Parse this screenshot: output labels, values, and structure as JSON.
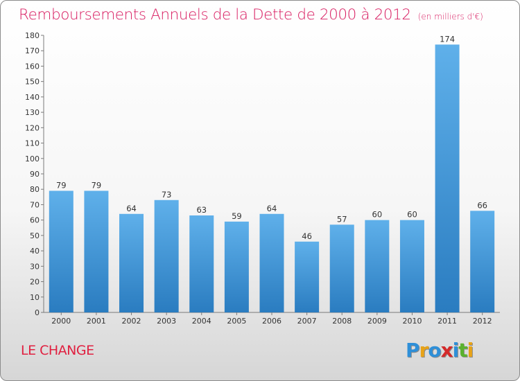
{
  "header": {
    "title": "Remboursements Annuels de la Dette de 2000 à 2012",
    "unit": "(en milliers d'€)"
  },
  "footer": {
    "commune": "LE CHANGE",
    "logo": [
      "P",
      "r",
      "o",
      "x",
      "i",
      "t",
      "i"
    ]
  },
  "colors": {
    "title": "#d81b60",
    "commune": "#e02040",
    "bar_light": "#5fb0ea",
    "bar_dark": "#2a7cc0",
    "logo_letters": [
      "#2e8fd8",
      "#e8a317",
      "#2e8fd8",
      "#d42a2a",
      "#2e8fd8",
      "#5ab22e",
      "#e8a317"
    ]
  },
  "chart_data": {
    "type": "bar",
    "categories": [
      "2000",
      "2001",
      "2002",
      "2003",
      "2004",
      "2005",
      "2006",
      "2007",
      "2008",
      "2009",
      "2010",
      "2011",
      "2012"
    ],
    "values": [
      79,
      79,
      64,
      73,
      63,
      59,
      64,
      46,
      57,
      60,
      60,
      174,
      66
    ],
    "ylim": [
      0,
      180
    ],
    "yticks": [
      0,
      10,
      20,
      30,
      40,
      50,
      60,
      70,
      80,
      90,
      100,
      110,
      120,
      130,
      140,
      150,
      160,
      170,
      180
    ],
    "grid": false
  }
}
